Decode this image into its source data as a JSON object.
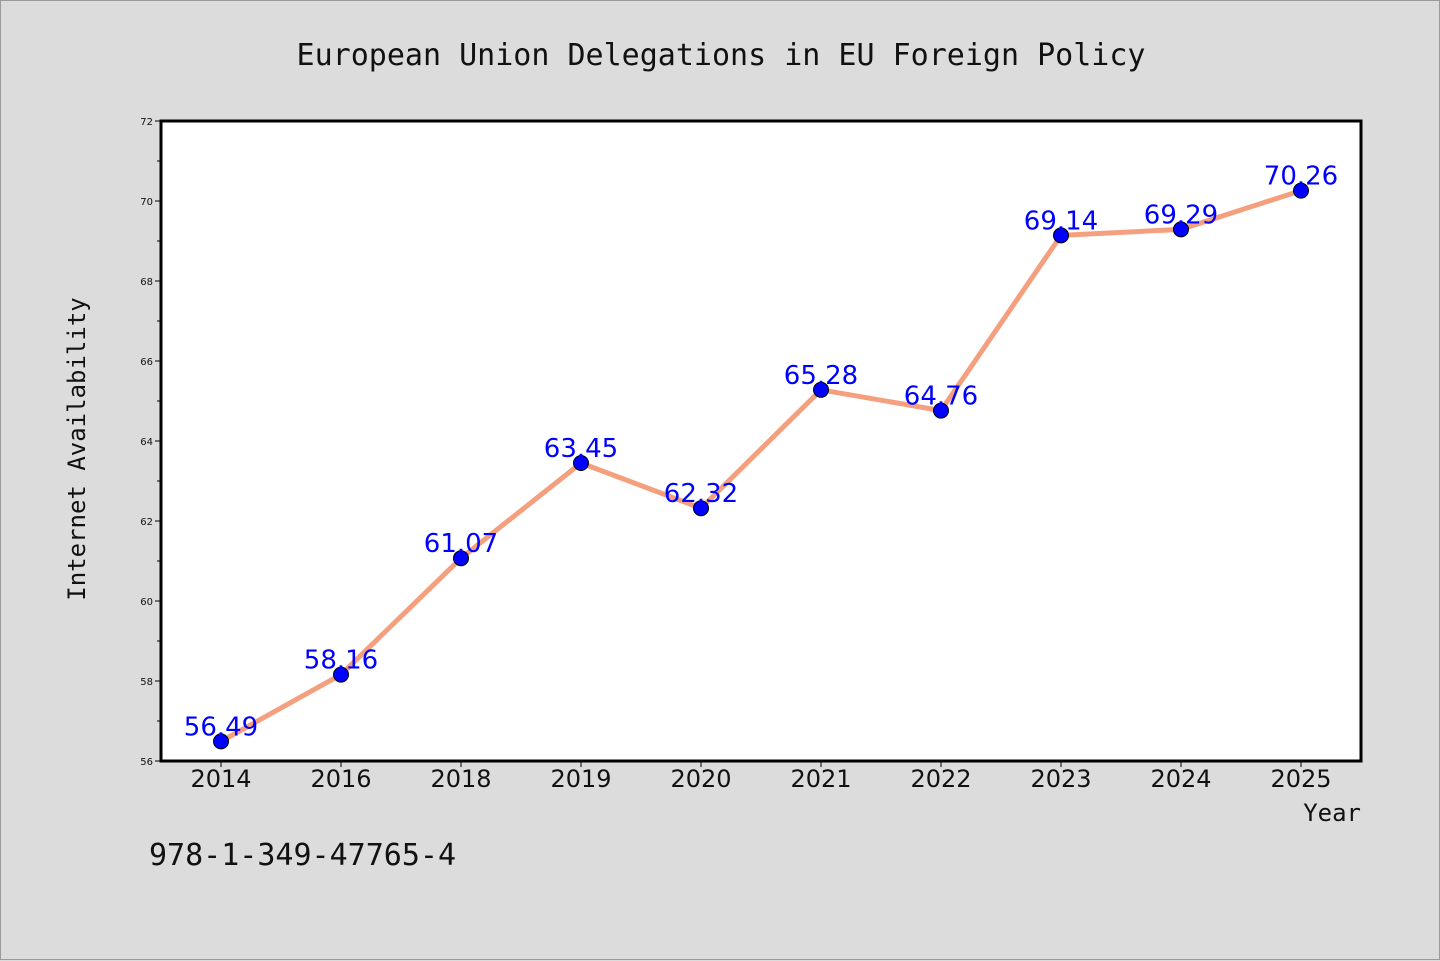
{
  "chart_data": {
    "type": "line",
    "title": "European Union Delegations in EU Foreign Policy",
    "xlabel": "Year",
    "ylabel": "Internet Availability",
    "categories": [
      "2014",
      "2016",
      "2018",
      "2019",
      "2020",
      "2021",
      "2022",
      "2023",
      "2024",
      "2025"
    ],
    "series": [
      {
        "values": [
          56.49,
          58.16,
          61.07,
          63.45,
          62.32,
          65.28,
          64.76,
          69.14,
          69.29,
          70.26
        ],
        "line_color": "#f4a07e",
        "marker_color": "#0000ff"
      }
    ],
    "data_labels": [
      "56.49",
      "58.16",
      "61.07",
      "63.45",
      "62.32",
      "65.28",
      "64.76",
      "69.14",
      "69.29",
      "70.26"
    ],
    "ylim": [
      56,
      72
    ],
    "yticks": [
      "56",
      "58",
      "60",
      "62",
      "64",
      "66",
      "68",
      "70",
      "72"
    ],
    "grid": false,
    "legend": "none",
    "label_color": "#0000ff",
    "plot_background": "#ffffff",
    "figure_background": "#dcdcdc"
  },
  "footer": {
    "isbn": "978-1-349-47765-4"
  }
}
